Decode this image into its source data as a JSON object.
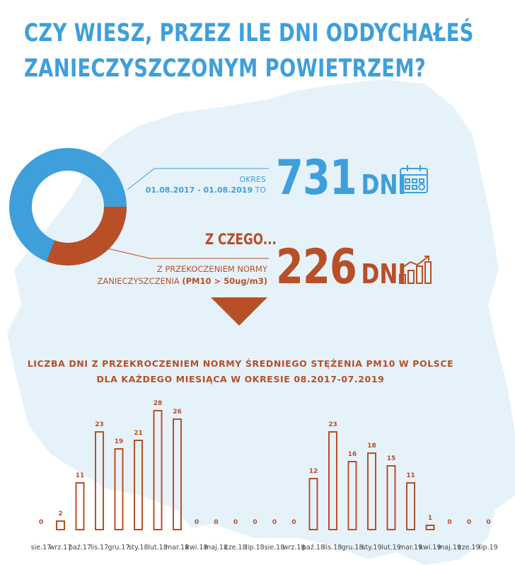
{
  "headline": {
    "line1": "CZY WIESZ, PRZEZ ILE DNI ODDYCHAŁEŚ",
    "line2": "ZANIECZYSZCZONYM POWIETRZEM?"
  },
  "period": {
    "label": "OKRES",
    "dates": "01.08.2017 - 01.08.2019",
    "to": "TO",
    "value": "731",
    "unit": "DNI"
  },
  "z_czego": "Z CZEGO...",
  "exceed": {
    "label_line1": "Z PRZEKOCZENIEM NORMY",
    "label_line2": "ZANIECZYSZCZENIA",
    "label_paren": "(PM10 > 50ug/m3)",
    "value": "226",
    "unit": "DNI"
  },
  "donut": {
    "total": 731,
    "part": 226,
    "total_color": "#3e9fdb",
    "part_color": "#b84f27"
  },
  "icons": {
    "period_icon": "calendar-icon",
    "exceed_icon": "bar-growth-icon",
    "arrow": "triangle-down-icon"
  },
  "colors": {
    "blue": "#3e9fdb",
    "rust": "#b84f27",
    "map": "#e6f2fa"
  },
  "chart_data": {
    "type": "bar",
    "title_line1": "LICZBA DNI Z PRZEKROCZENIEM NORMY ŚREDNIEGO STĘŻENIA PM10 W POLSCE",
    "title_line2": "DLA KAŻDEGO MIESIĄCA W OKRESIE  08.2017-07.2019",
    "categories": [
      "sie.17",
      "wrz.17",
      "paź.17",
      "lis.17",
      "gru.17",
      "sty.18",
      "lut.18",
      "mar.18",
      "kwi.18",
      "maj.18",
      "cze.18",
      "lip.18",
      "sie.18",
      "wrz.18",
      "paź.18",
      "lis.18",
      "gru.18",
      "sty.19",
      "lut.19",
      "mar.19",
      "kwi.19",
      "maj.19",
      "cze.19",
      "lip.19"
    ],
    "values": [
      0,
      2,
      11,
      23,
      19,
      21,
      28,
      26,
      0,
      0,
      0,
      0,
      0,
      0,
      12,
      23,
      16,
      18,
      15,
      11,
      1,
      0,
      0,
      0
    ],
    "ylim": [
      0,
      28
    ],
    "grid": false,
    "data_labels": true
  }
}
